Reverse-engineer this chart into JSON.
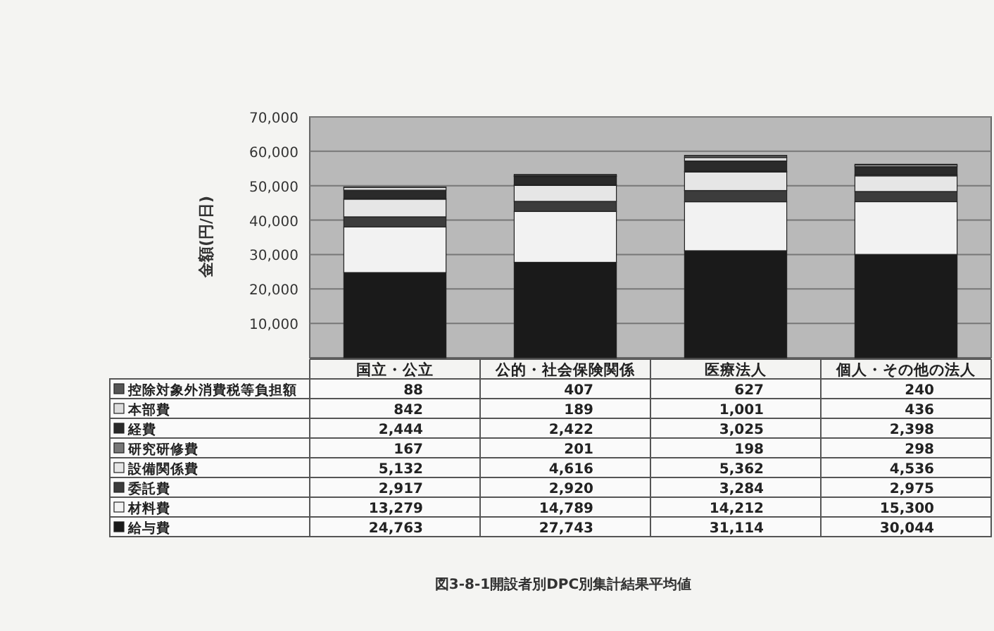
{
  "chart_data": {
    "type": "bar",
    "stacked": true,
    "title": "図3-8-1開設者別DPC別集計結果平均値",
    "ylabel": "金額(円/日)",
    "categories": [
      "国立・公立",
      "公的・社会保険関係",
      "医療法人",
      "個人・その他の法人"
    ],
    "ylim": [
      0,
      70000
    ],
    "yticks": [
      {
        "value": 10000,
        "label": "10,000"
      },
      {
        "value": 20000,
        "label": "20,000"
      },
      {
        "value": 30000,
        "label": "30,000"
      },
      {
        "value": 40000,
        "label": "40,000"
      },
      {
        "value": 50000,
        "label": "50,000"
      },
      {
        "value": 60000,
        "label": "60,000"
      },
      {
        "value": 70000,
        "label": "70,000"
      }
    ],
    "grid": "y",
    "legend": "bottom",
    "series": [
      {
        "name": "給与費",
        "color": "#1a1a1a",
        "values": [
          24763,
          27743,
          31114,
          30044
        ],
        "value_labels": [
          "24,763",
          "27,743",
          "31,114",
          "30,044"
        ]
      },
      {
        "name": "材料費",
        "color": "#f2f2f2",
        "values": [
          13279,
          14789,
          14212,
          15300
        ],
        "value_labels": [
          "13,279",
          "14,789",
          "14,212",
          "15,300"
        ]
      },
      {
        "name": "委託費",
        "color": "#3c3c3c",
        "values": [
          2917,
          2920,
          3284,
          2975
        ],
        "value_labels": [
          "2,917",
          "2,920",
          "3,284",
          "2,975"
        ]
      },
      {
        "name": "設備関係費",
        "color": "#e6e6e6",
        "values": [
          5132,
          4616,
          5362,
          4536
        ],
        "value_labels": [
          "5,132",
          "4,616",
          "5,362",
          "4,536"
        ]
      },
      {
        "name": "研究研修費",
        "color": "#777777",
        "values": [
          167,
          201,
          198,
          298
        ],
        "value_labels": [
          "167",
          "201",
          "198",
          "298"
        ]
      },
      {
        "name": "経費",
        "color": "#2a2a2a",
        "values": [
          2444,
          2422,
          3025,
          2398
        ],
        "value_labels": [
          "2,444",
          "2,422",
          "3,025",
          "2,398"
        ]
      },
      {
        "name": "本部費",
        "color": "#dddddd",
        "values": [
          842,
          189,
          1001,
          436
        ],
        "value_labels": [
          "842",
          "189",
          "1,001",
          "436"
        ]
      },
      {
        "name": "控除対象外消費税等負担額",
        "color": "#555555",
        "values": [
          88,
          407,
          627,
          240
        ],
        "value_labels": [
          "88",
          "407",
          "627",
          "240"
        ]
      }
    ]
  }
}
